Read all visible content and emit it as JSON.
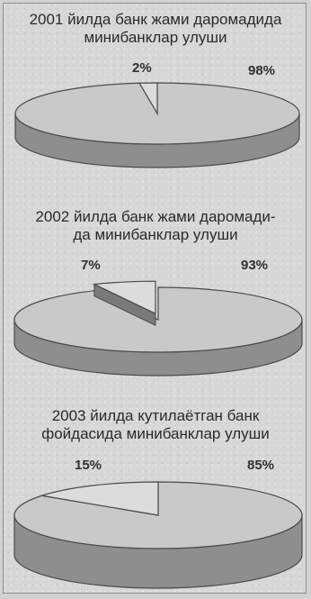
{
  "chart_data": [
    {
      "type": "pie",
      "title_line1": "2001 йилда банк жами даромадида",
      "title_line2": "минибанклар улуши",
      "slices": [
        {
          "label": "2%",
          "value": 2
        },
        {
          "label": "98%",
          "value": 98
        }
      ]
    },
    {
      "type": "pie",
      "title_line1": "2002 йилда банк жами даромади-",
      "title_line2": "да минибанклар улуши",
      "slices": [
        {
          "label": "7%",
          "value": 7
        },
        {
          "label": "93%",
          "value": 93
        }
      ]
    },
    {
      "type": "pie",
      "title_line1": "2003 йилда кутилаётган банк",
      "title_line2": "фойдасида минибанклар улуши",
      "slices": [
        {
          "label": "15%",
          "value": 15
        },
        {
          "label": "85%",
          "value": 85
        }
      ]
    }
  ],
  "colors": {
    "top_fill": "#c9c9c9",
    "small_fill": "#dcdcdc",
    "side_fill": "#8e8e8e",
    "stroke": "#4a4a4a"
  }
}
